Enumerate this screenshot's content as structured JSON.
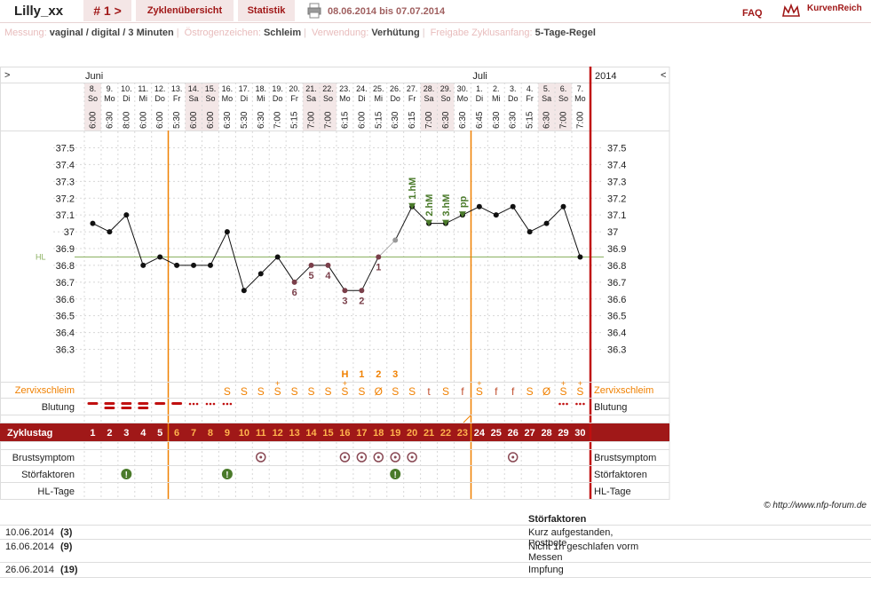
{
  "topbar": {
    "user": "Lilly_xx",
    "cycle_nav": "# 1 >",
    "tabs": [
      "Zyklenübersicht",
      "Statistik"
    ],
    "date_range": "08.06.2014 bis 07.07.2014",
    "faq": "FAQ",
    "logo": "KurvenReich"
  },
  "info": [
    {
      "label": "Messung:",
      "value": "vaginal / digital / 3 Minuten"
    },
    {
      "label": "Östrogenzeichen:",
      "value": "Schleim"
    },
    {
      "label": "Verwendung:",
      "value": "Verhütung"
    },
    {
      "label": "Freigabe Zyklusanfang:",
      "value": "5-Tage-Regel"
    }
  ],
  "nav": {
    "prev": ">",
    "next": "<",
    "year": "2014"
  },
  "months": [
    "Juni",
    "Juli"
  ],
  "days": [
    {
      "d": "8.",
      "w": "So",
      "t": "6:00"
    },
    {
      "d": "9.",
      "w": "Mo",
      "t": "6:30"
    },
    {
      "d": "10.",
      "w": "Di",
      "t": "8:00"
    },
    {
      "d": "11.",
      "w": "Mi",
      "t": "6:00"
    },
    {
      "d": "12.",
      "w": "Do",
      "t": "6:00"
    },
    {
      "d": "13.",
      "w": "Fr",
      "t": "5:30"
    },
    {
      "d": "14.",
      "w": "Sa",
      "t": "6:00"
    },
    {
      "d": "15.",
      "w": "So",
      "t": "6:00"
    },
    {
      "d": "16.",
      "w": "Mo",
      "t": "6:30"
    },
    {
      "d": "17.",
      "w": "Di",
      "t": "5:30"
    },
    {
      "d": "18.",
      "w": "Mi",
      "t": "6:30"
    },
    {
      "d": "19.",
      "w": "Do",
      "t": "7:00"
    },
    {
      "d": "20.",
      "w": "Fr",
      "t": "5:15"
    },
    {
      "d": "21.",
      "w": "Sa",
      "t": "7:00"
    },
    {
      "d": "22.",
      "w": "So",
      "t": "7:00"
    },
    {
      "d": "23.",
      "w": "Mo",
      "t": "6:15"
    },
    {
      "d": "24.",
      "w": "Di",
      "t": "6:00"
    },
    {
      "d": "25.",
      "w": "Mi",
      "t": "5:15"
    },
    {
      "d": "26.",
      "w": "Do",
      "t": "6:30"
    },
    {
      "d": "27.",
      "w": "Fr",
      "t": "6:15"
    },
    {
      "d": "28.",
      "w": "Sa",
      "t": "7:00"
    },
    {
      "d": "29.",
      "w": "So",
      "t": "6:30"
    },
    {
      "d": "30.",
      "w": "Mo",
      "t": "6:30"
    },
    {
      "d": "1.",
      "w": "Di",
      "t": "6:45"
    },
    {
      "d": "2.",
      "w": "Mi",
      "t": "6:30"
    },
    {
      "d": "3.",
      "w": "Do",
      "t": "6:30"
    },
    {
      "d": "4.",
      "w": "Fr",
      "t": "5:15"
    },
    {
      "d": "5.",
      "w": "Sa",
      "t": "6:30"
    },
    {
      "d": "6.",
      "w": "So",
      "t": "7:00"
    },
    {
      "d": "7.",
      "w": "Mo",
      "t": "7:00"
    }
  ],
  "chart_data": {
    "type": "line",
    "ylim": [
      36.2,
      37.6
    ],
    "yticks": [
      "37.5",
      "37.4",
      "37.3",
      "37.2",
      "37.1",
      "37",
      "36.9",
      "36.8",
      "36.7",
      "36.6",
      "36.5",
      "36.4",
      "36.3"
    ],
    "temps": [
      37.05,
      37.0,
      37.1,
      36.8,
      36.85,
      36.8,
      36.8,
      36.8,
      37.0,
      36.65,
      36.75,
      36.85,
      36.7,
      36.8,
      36.8,
      36.65,
      36.65,
      36.85,
      36.95,
      37.15,
      37.05,
      37.05,
      37.1,
      37.15,
      37.1,
      37.15,
      37.0,
      37.05,
      37.15,
      36.85
    ],
    "hl_value": 36.85,
    "hl_label": "HL",
    "low_labels": [
      {
        "day": 13,
        "text": "6"
      },
      {
        "day": 14,
        "text": "5"
      },
      {
        "day": 15,
        "text": "4"
      },
      {
        "day": 16,
        "text": "3"
      },
      {
        "day": 17,
        "text": "2"
      },
      {
        "day": 18,
        "text": "1"
      }
    ],
    "high_labels": [
      {
        "day": 20,
        "text": "1.hM"
      },
      {
        "day": 21,
        "text": "2.hM"
      },
      {
        "day": 22,
        "text": "3.hM"
      },
      {
        "day": 23,
        "text": "pp"
      }
    ]
  },
  "cervix_top": [
    {
      "day": 16,
      "text": "H"
    },
    {
      "day": 17,
      "text": "1"
    },
    {
      "day": 18,
      "text": "2"
    },
    {
      "day": 19,
      "text": "3"
    }
  ],
  "rows": {
    "cervix_label": "Zervixschleim",
    "bleeding_label": "Blutung",
    "cycle_label": "Zyklustag",
    "breast_label": "Brustsymptom",
    "disturb_label": "Störfaktoren",
    "hl_label": "HL-Tage"
  },
  "cervix": [
    "",
    "",
    "",
    "",
    "",
    "",
    "",
    "",
    "S",
    "S",
    "S",
    "S+",
    "S",
    "S",
    "S",
    "S+",
    "S",
    "Ø",
    "S",
    "S",
    "t",
    "S",
    "f",
    "S+",
    "f",
    "f",
    "S",
    "Ø",
    "S+",
    "S+"
  ],
  "bleeding": [
    "b",
    "b",
    "b",
    "b",
    "b",
    "b",
    "d",
    "d",
    "d",
    "",
    "",
    "",
    "",
    "",
    "",
    "",
    "",
    "",
    "",
    "",
    "",
    "",
    "",
    "",
    "",
    "",
    "",
    "",
    "d",
    "d"
  ],
  "breast_days": [
    11,
    16,
    17,
    18,
    19,
    20,
    26
  ],
  "disturb_days": [
    3,
    9,
    19
  ],
  "footer": {
    "copyright": "© http://www.nfp-forum.de",
    "heading": "Störfaktoren",
    "rows": [
      {
        "date": "10.06.2014",
        "cycle": "(3)",
        "text": "Kurz aufgestanden, Postbote"
      },
      {
        "date": "16.06.2014",
        "cycle": "(9)",
        "text": "Nicht 1h geschlafen vorm Messen"
      },
      {
        "date": "26.06.2014",
        "cycle": "(19)",
        "text": "Impfung"
      }
    ]
  },
  "colors": {
    "accent": "#a01818",
    "orange": "#f08000",
    "dot": "#111111",
    "line_low": "#7a3f4a",
    "green": "#4a7a2a",
    "hl": "#8ab060",
    "pale": "#f3e7e7"
  }
}
